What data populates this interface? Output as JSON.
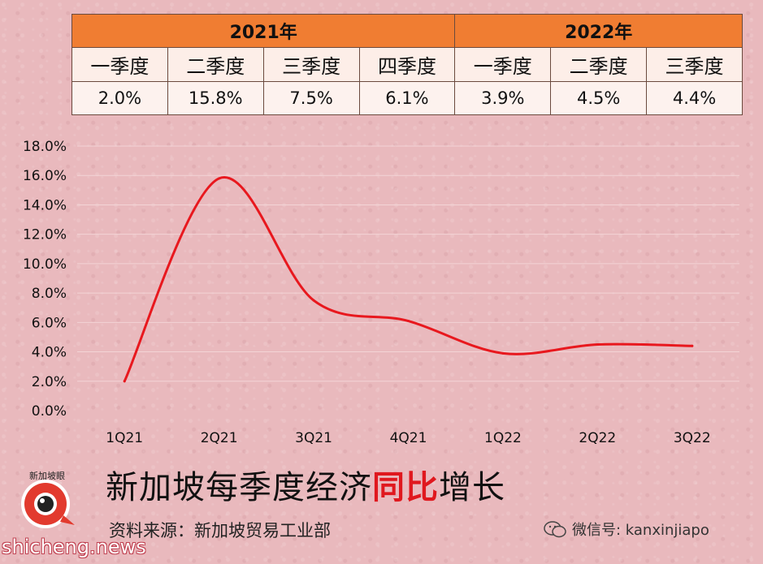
{
  "table": {
    "years": [
      "2021年",
      "2022年"
    ],
    "quarters": [
      "一季度",
      "二季度",
      "三季度",
      "四季度",
      "一季度",
      "二季度",
      "三季度"
    ],
    "values": [
      "2.0%",
      "15.8%",
      "7.5%",
      "6.1%",
      "3.9%",
      "4.5%",
      "4.4%"
    ]
  },
  "chart_data": {
    "type": "line",
    "categories": [
      "1Q21",
      "2Q21",
      "3Q21",
      "4Q21",
      "1Q22",
      "2Q22",
      "3Q22"
    ],
    "series": [
      {
        "values": [
          2.0,
          15.8,
          7.5,
          6.1,
          3.9,
          4.5,
          4.4
        ]
      }
    ],
    "y_ticks": [
      "0.0%",
      "2.0%",
      "4.0%",
      "6.0%",
      "8.0%",
      "10.0%",
      "12.0%",
      "14.0%",
      "16.0%",
      "18.0%"
    ],
    "ylim": [
      0,
      18
    ],
    "grid": true,
    "line_color": "#e8181e",
    "smooth": true
  },
  "title": {
    "part1": "新加坡每季度经济",
    "highlight": "同比",
    "part2": "增长"
  },
  "source": "资料来源：新加坡贸易工业部",
  "logo": {
    "label": "新加坡眼"
  },
  "watermark": "shicheng.news",
  "wechat": {
    "text": "微信号: kanxinjiapo",
    "icon": "wechat-icon"
  }
}
